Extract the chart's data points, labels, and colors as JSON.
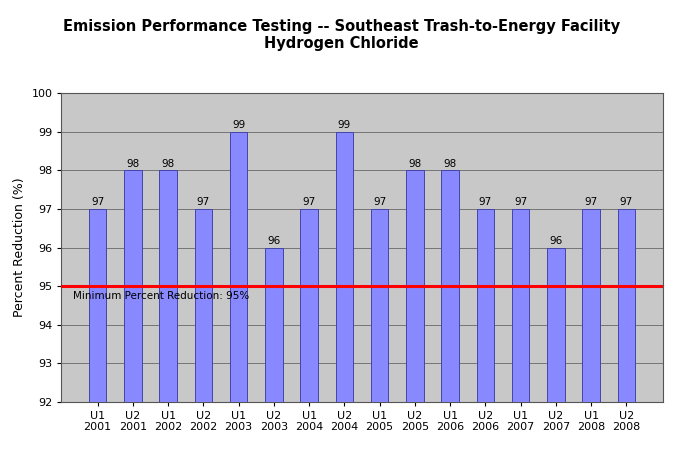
{
  "title_line1": "Emission Performance Testing -- Southeast Trash-to-Energy Facility",
  "title_line2": "Hydrogen Chloride",
  "categories": [
    "U1\n2001",
    "U2\n2001",
    "U1\n2002",
    "U2\n2002",
    "U1\n2003",
    "U2\n2003",
    "U1\n2004",
    "U2\n2004",
    "U1\n2005",
    "U2\n2005",
    "U1\n2006",
    "U2\n2006",
    "U1\n2007",
    "U2\n2007",
    "U1\n2008",
    "U2\n2008"
  ],
  "values": [
    97,
    98,
    98,
    97,
    99,
    96,
    97,
    99,
    97,
    98,
    98,
    97,
    97,
    96,
    97,
    97
  ],
  "bar_color": "#8888FF",
  "bar_edge_color": "#4444AA",
  "ylabel": "Percent Reduction (%)",
  "ylim": [
    92,
    100
  ],
  "yticks": [
    92,
    93,
    94,
    95,
    96,
    97,
    98,
    99,
    100
  ],
  "reference_line_y": 95,
  "reference_line_color": "red",
  "reference_label": "Minimum Percent Reduction: 95%",
  "background_color": "#C8C8C8",
  "fig_background_color": "#FFFFFF",
  "grid_color": "#555555",
  "title_fontsize": 10.5,
  "axis_label_fontsize": 9,
  "tick_fontsize": 8,
  "bar_label_fontsize": 7.5
}
